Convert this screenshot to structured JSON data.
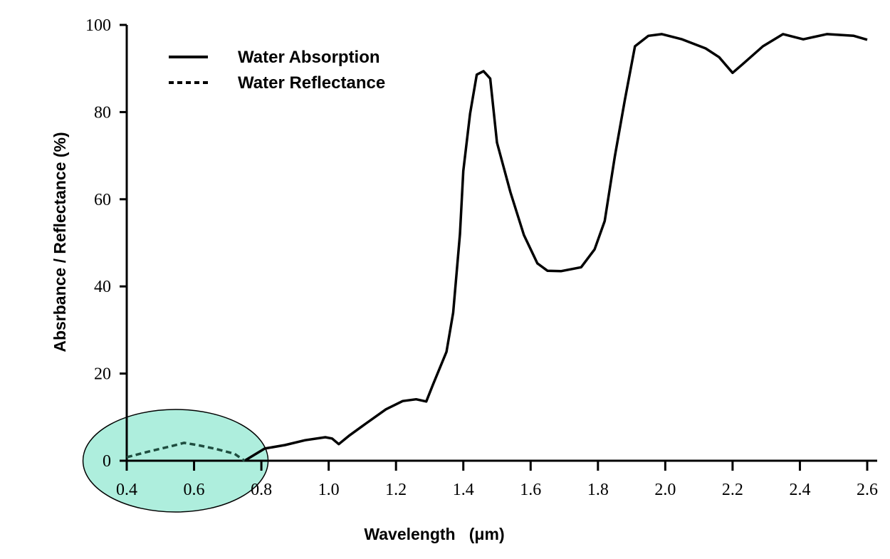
{
  "chart_data": {
    "type": "line",
    "title": "",
    "xlabel": "Wavelength   (μm)",
    "ylabel": "Absrbance / Reflectance (%)",
    "xlim": [
      0.4,
      2.6
    ],
    "ylim": [
      0,
      100
    ],
    "xticks": [
      "0.4",
      "0.6",
      "0.8",
      "1.0",
      "1.2",
      "1.4",
      "1.6",
      "1.8",
      "2.0",
      "2.2",
      "2.4",
      "2.6"
    ],
    "yticks": [
      "0",
      "20",
      "40",
      "60",
      "80",
      "100"
    ],
    "grid": false,
    "legend_position": "top-left",
    "highlight": {
      "shape": "ellipse",
      "color": "#aeeedd",
      "x_range": [
        0.4,
        0.8
      ]
    },
    "series": [
      {
        "name": "Water Absorption",
        "style": "solid",
        "color": "#000000",
        "x": [
          0.75,
          0.81,
          0.87,
          0.93,
          0.99,
          1.01,
          1.03,
          1.06,
          1.11,
          1.17,
          1.22,
          1.26,
          1.29,
          1.31,
          1.35,
          1.37,
          1.39,
          1.4,
          1.42,
          1.44,
          1.46,
          1.48,
          1.5,
          1.54,
          1.58,
          1.62,
          1.65,
          1.69,
          1.75,
          1.79,
          1.82,
          1.85,
          1.88,
          1.91,
          1.95,
          1.99,
          2.05,
          2.12,
          2.16,
          2.2,
          2.23,
          2.29,
          2.35,
          2.41,
          2.48,
          2.56,
          2.6
        ],
        "y": [
          0,
          2.8,
          3.6,
          4.7,
          5.4,
          5.1,
          3.8,
          5.7,
          8.5,
          11.8,
          13.7,
          14.1,
          13.6,
          17.5,
          25,
          34,
          52,
          66.5,
          79.6,
          88.6,
          89.4,
          87.7,
          73,
          61.6,
          51.8,
          45.3,
          43.6,
          43.5,
          44.4,
          48.5,
          55,
          69.8,
          82.8,
          95.1,
          97.5,
          97.9,
          96.7,
          94.6,
          92.6,
          89,
          91,
          95.1,
          97.9,
          96.7,
          97.9,
          97.5,
          96.6
        ]
      },
      {
        "name": "Water Reflectance",
        "style": "dashed",
        "color": "#000000",
        "x": [
          0.4,
          0.47,
          0.53,
          0.57,
          0.61,
          0.66,
          0.72,
          0.75
        ],
        "y": [
          0.8,
          2.2,
          3.3,
          4.1,
          3.6,
          2.8,
          1.6,
          0
        ]
      }
    ]
  }
}
